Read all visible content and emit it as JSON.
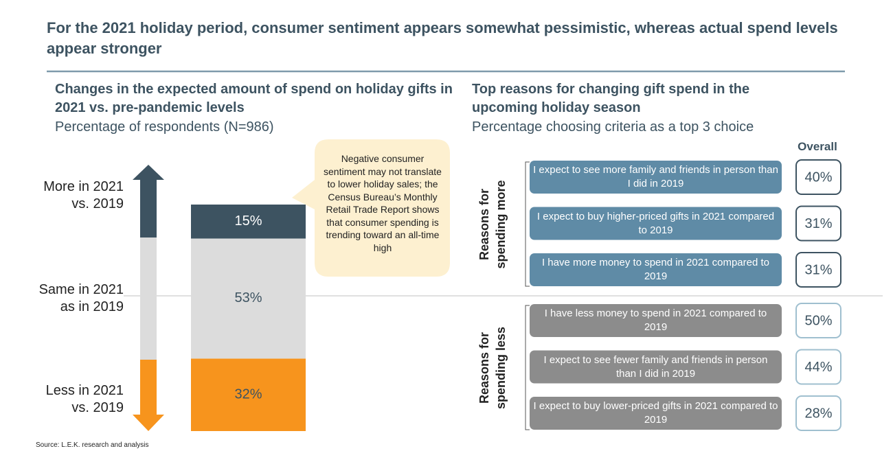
{
  "header": {
    "title": "For the 2021 holiday period, consumer sentiment appears somewhat pessimistic, whereas actual spend levels appear stronger"
  },
  "footer": {
    "source": "Source: L.E.K. research and analysis"
  },
  "chart_data": [
    {
      "type": "stacked_bar",
      "title": "Changes in the expected amount of spend on holiday gifts in 2021 vs. pre-pandemic levels",
      "subtitle": "Percentage of respondents (N=986)",
      "annotation": "Negative consumer sentiment may not translate to lower holiday sales; the Census Bureau’s Monthly Retail Trade Report shows that consumer spending is trending toward an all-time high",
      "series": [
        {
          "name": "Less in 2021 vs. 2019",
          "color": "#f7941d",
          "values": [
            32
          ],
          "value_labels": [
            "32%"
          ]
        },
        {
          "name": "Same in 2021 as in 2019",
          "color": "#dcdcdc",
          "values": [
            53
          ],
          "value_labels": [
            "53%"
          ]
        },
        {
          "name": "More in 2021 vs. 2019",
          "color": "#3d5361",
          "values": [
            15
          ],
          "value_labels": [
            "15%"
          ]
        }
      ]
    },
    {
      "type": "ranked_list",
      "title": "Top reasons for changing gift spend in the upcoming holiday season",
      "subtitle": "Percentage choosing criteria as a top 3 choice",
      "column_label": "Overall",
      "series": [
        {
          "name": "Reasons for spending more",
          "color": "#5f8ba6",
          "border": "#3d5361",
          "categories": [
            "I expect to see more family and friends in person than I did in 2019",
            "I expect to buy higher-priced gifts in 2021 compared to 2019",
            "I have more money to spend in 2021 compared to 2019"
          ],
          "values": [
            40,
            31,
            31
          ],
          "value_labels": [
            "40%",
            "31%",
            "31%"
          ]
        },
        {
          "name": "Reasons for spending less",
          "color": "#8c8c8c",
          "border": "#9fbfcf",
          "categories": [
            "I have less money to spend in 2021 compared to 2019",
            "I expect to see fewer family and friends in person than I did in 2019",
            "I expect to buy lower-priced gifts in 2021 compared to 2019"
          ],
          "values": [
            50,
            44,
            28
          ],
          "value_labels": [
            "50%",
            "44%",
            "28%"
          ]
        }
      ]
    }
  ]
}
